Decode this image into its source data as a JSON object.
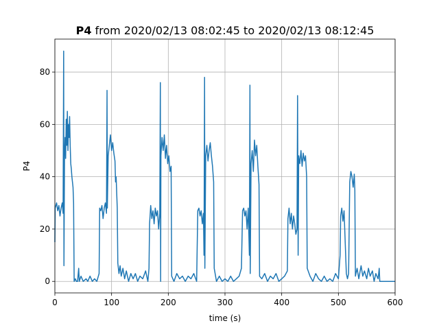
{
  "chart_data": {
    "type": "line",
    "title_bold": "P4",
    "title_rest": "from 2020/02/13 08:02:45 to 2020/02/13 08:12:45",
    "x_label": "time (s)",
    "y_label": "P4",
    "color": "#1f77b4",
    "grid": true,
    "xlim": [
      0,
      600
    ],
    "xticks": [
      0,
      100,
      200,
      300,
      400,
      500,
      600
    ],
    "ylim": [
      -4.4,
      92.6
    ],
    "yticks": [
      0,
      20,
      40,
      60,
      80
    ],
    "x": [
      0,
      0.5,
      3,
      5,
      7,
      9,
      11,
      13,
      14.5,
      15.5,
      16,
      17,
      18,
      19,
      20,
      21,
      22,
      23,
      24,
      25,
      26,
      27,
      28,
      29,
      30,
      31,
      32,
      33,
      34,
      36,
      38,
      40,
      42,
      43,
      46,
      50,
      55,
      58,
      62,
      66,
      70,
      74,
      78,
      79,
      81,
      83,
      85,
      87,
      89,
      91,
      92,
      92.5,
      94,
      96,
      98,
      100,
      102,
      104,
      106,
      107,
      108,
      110,
      111,
      113,
      115,
      117,
      120,
      123,
      126,
      130,
      134,
      138,
      142,
      146,
      150,
      155,
      160,
      164,
      166,
      167,
      169,
      171,
      173,
      175,
      177,
      179,
      181,
      183,
      185,
      186,
      186.5,
      187,
      189,
      191,
      193,
      195,
      197,
      199,
      201,
      203,
      205,
      206,
      210,
      215,
      220,
      225,
      230,
      235,
      240,
      245,
      250,
      252,
      254,
      256,
      258,
      260,
      262,
      263,
      264,
      264.5,
      266,
      268,
      270,
      272,
      274,
      276,
      278,
      280,
      281,
      285,
      290,
      295,
      300,
      305,
      310,
      315,
      320,
      325,
      329,
      331,
      333,
      335,
      337,
      339,
      341,
      343,
      344,
      344.5,
      346,
      348,
      350,
      352,
      354,
      356,
      358,
      360,
      361,
      365,
      370,
      375,
      380,
      385,
      390,
      395,
      400,
      405,
      410,
      411,
      413,
      415,
      417,
      419,
      421,
      423,
      425,
      427,
      428,
      429,
      430,
      432,
      434,
      436,
      438,
      440,
      442,
      444,
      445,
      450,
      455,
      460,
      465,
      470,
      475,
      480,
      485,
      490,
      495,
      500,
      503,
      504,
      506,
      508,
      510,
      512,
      514,
      516,
      518,
      520,
      522,
      524,
      526,
      528,
      529,
      530,
      533,
      536,
      540,
      543,
      546,
      550,
      553,
      556,
      560,
      563,
      566,
      570,
      572,
      573,
      600
    ],
    "values": [
      15,
      28,
      30,
      27,
      29,
      25,
      28,
      30,
      26,
      88,
      6,
      48,
      55,
      47,
      62,
      52,
      65,
      50,
      60,
      55,
      63,
      52,
      45,
      43,
      40,
      38,
      36,
      30,
      0,
      1,
      0,
      0,
      5,
      0,
      2,
      0,
      1,
      0,
      2,
      0,
      1,
      0,
      3,
      28,
      27,
      29,
      24,
      28,
      30,
      26,
      73,
      28,
      48,
      52,
      56,
      50,
      53,
      49,
      46,
      38,
      40,
      28,
      7,
      3,
      6,
      2,
      5,
      1,
      4,
      0,
      3,
      1,
      3,
      0,
      2,
      1,
      4,
      0,
      5,
      22,
      29,
      24,
      27,
      22,
      28,
      25,
      27,
      20,
      26,
      76,
      0,
      48,
      55,
      50,
      56,
      47,
      52,
      45,
      48,
      42,
      44,
      2,
      0,
      3,
      1,
      2,
      0,
      2,
      1,
      3,
      0,
      27,
      28,
      25,
      27,
      22,
      26,
      10,
      78,
      5,
      48,
      52,
      46,
      50,
      53,
      48,
      44,
      38,
      5,
      0,
      2,
      0,
      1,
      0,
      2,
      0,
      1,
      2,
      5,
      27,
      28,
      25,
      27,
      20,
      28,
      10,
      75,
      3,
      45,
      50,
      42,
      54,
      48,
      52,
      44,
      37,
      2,
      1,
      3,
      0,
      2,
      1,
      3,
      0,
      1,
      2,
      4,
      24,
      28,
      22,
      26,
      20,
      25,
      22,
      18,
      20,
      71,
      10,
      48,
      45,
      50,
      44,
      49,
      46,
      48,
      40,
      5,
      2,
      0,
      3,
      1,
      0,
      2,
      0,
      1,
      0,
      3,
      1,
      10,
      25,
      28,
      23,
      27,
      15,
      3,
      1,
      3,
      38,
      42,
      40,
      36,
      41,
      35,
      2,
      5,
      1,
      6,
      2,
      4,
      1,
      5,
      2,
      4,
      0,
      3,
      1,
      5,
      0,
      0
    ]
  }
}
